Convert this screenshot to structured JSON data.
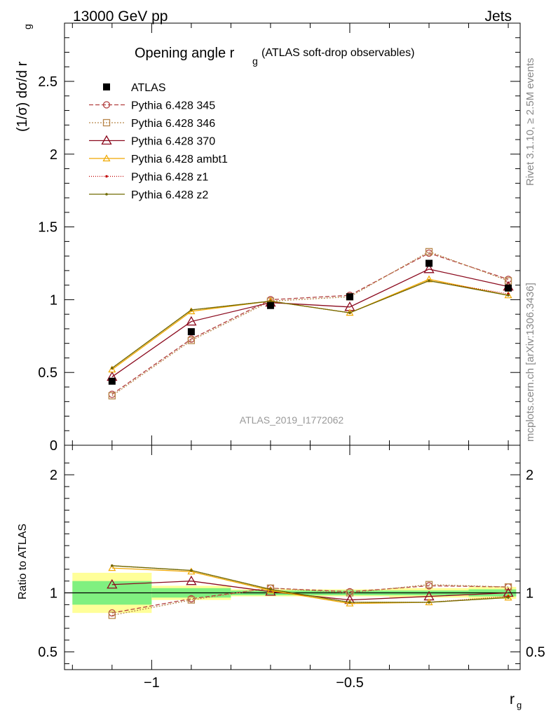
{
  "header": {
    "left": "13000 GeV pp",
    "right": "Jets"
  },
  "side_labels": {
    "rivet": "Rivet 3.1.10, ≥ 2.5M events",
    "mcplots": "mcplots.cern.ch [arXiv:1306.3436]"
  },
  "watermark": "ATLAS_2019_I1772062",
  "colors": {
    "atlas": "#000000",
    "p345": "#b24040",
    "p346": "#b8864a",
    "p370": "#8b0a1e",
    "ambt1": "#f0a800",
    "z1": "#c00000",
    "z2": "#6f6a00",
    "band_stat": "#80f080",
    "band_total": "#ffff99"
  },
  "chart_data": {
    "type": "line",
    "title": "Opening angle r",
    "title_sub": "g",
    "title_note": "(ATLAS soft-drop observables)",
    "ylabel_main": "(1/σ) dσ/d r",
    "ylabel_main_sub": "g",
    "ylabel_ratio": "Ratio to ATLAS",
    "xlabel": "r",
    "xlabel_sub": "g",
    "xlim": [
      -1.22,
      -0.07
    ],
    "ylim_main": [
      0,
      2.9
    ],
    "ylim_ratio": [
      0.35,
      2.25
    ],
    "x_ticks": [
      {
        "v": -1,
        "label": "−1"
      },
      {
        "v": -0.5,
        "label": "−0.5"
      }
    ],
    "y_ticks_main": [
      {
        "v": 0,
        "label": "0"
      },
      {
        "v": 0.5,
        "label": "0.5"
      },
      {
        "v": 1,
        "label": "1"
      },
      {
        "v": 1.5,
        "label": "1.5"
      },
      {
        "v": 2,
        "label": "2"
      },
      {
        "v": 2.5,
        "label": "2.5"
      }
    ],
    "y_ticks_ratio": [
      {
        "v": 0.5,
        "label": "0.5"
      },
      {
        "v": 1,
        "label": "1"
      },
      {
        "v": 2,
        "label": "2"
      }
    ],
    "x": [
      -1.1,
      -0.9,
      -0.7,
      -0.5,
      -0.3,
      -0.1
    ],
    "bin_edges": [
      -1.2,
      -1.0,
      -0.8,
      -0.6,
      -0.4,
      -0.2,
      -0.08
    ],
    "atlas": {
      "name": "ATLAS",
      "values": [
        0.44,
        0.78,
        0.96,
        1.02,
        1.25,
        1.08
      ]
    },
    "ratio_band_stat": [
      0.1,
      0.04,
      0.02,
      0.02,
      0.02,
      0.03
    ],
    "ratio_band_total": [
      0.17,
      0.06,
      0.03,
      0.03,
      0.04,
      0.05
    ],
    "series": [
      {
        "name": "Pythia 6.428 345",
        "key": "p345",
        "dash": "6,3",
        "marker": "circle",
        "values": [
          0.35,
          0.73,
          1.0,
          1.03,
          1.32,
          1.14
        ],
        "ratio": [
          0.83,
          0.95,
          1.04,
          1.01,
          1.06,
          1.05
        ]
      },
      {
        "name": "Pythia 6.428 346",
        "key": "p346",
        "dash": "2,2",
        "marker": "square",
        "values": [
          0.34,
          0.72,
          0.99,
          1.02,
          1.33,
          1.13
        ],
        "ratio": [
          0.81,
          0.94,
          1.04,
          1.0,
          1.07,
          1.05
        ]
      },
      {
        "name": "Pythia 6.428 370",
        "key": "p370",
        "dash": "",
        "marker": "triangle",
        "values": [
          0.47,
          0.85,
          0.98,
          0.95,
          1.21,
          1.09
        ],
        "ratio": [
          1.07,
          1.1,
          1.01,
          0.94,
          0.97,
          1.0
        ]
      },
      {
        "name": "Pythia 6.428 ambt1",
        "key": "ambt1",
        "dash": "",
        "marker": "smalltriangle",
        "values": [
          0.52,
          0.92,
          0.99,
          0.91,
          1.14,
          1.03
        ],
        "ratio": [
          1.21,
          1.18,
          1.02,
          0.91,
          0.92,
          0.96
        ]
      },
      {
        "name": "Pythia 6.428 z1",
        "key": "z1",
        "dash": "1,2",
        "marker": "dot",
        "values": [
          0.53,
          0.93,
          0.99,
          0.91,
          1.13,
          1.04
        ],
        "ratio": [
          1.23,
          1.19,
          1.03,
          0.92,
          0.92,
          0.97
        ]
      },
      {
        "name": "Pythia 6.428 z2",
        "key": "z2",
        "dash": "",
        "marker": "dot",
        "values": [
          0.53,
          0.93,
          0.99,
          0.91,
          1.13,
          1.03
        ],
        "ratio": [
          1.23,
          1.19,
          1.03,
          0.92,
          0.92,
          0.96
        ]
      }
    ]
  }
}
